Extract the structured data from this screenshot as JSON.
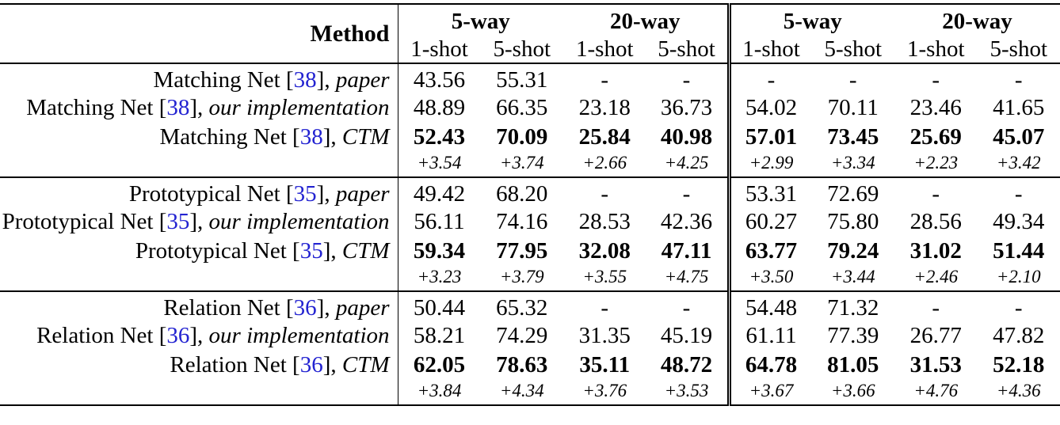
{
  "format": {
    "cite_open": " [",
    "cite_close": "], "
  },
  "colors": {
    "citation_blue": "#2323d1",
    "rule_black": "#000000",
    "background": "#ffffff"
  },
  "header": {
    "method": "Method",
    "way_groups": [
      "5-way",
      "20-way",
      "5-way",
      "20-way"
    ],
    "shots": [
      "1-shot",
      "5-shot",
      "1-shot",
      "5-shot",
      "1-shot",
      "5-shot",
      "1-shot",
      "5-shot"
    ]
  },
  "groups": [
    {
      "rows": [
        {
          "name": "Matching Net",
          "cite": "38",
          "suffix": "paper",
          "values": [
            "43.56",
            "55.31",
            "-",
            "-",
            "-",
            "-",
            "-",
            "-"
          ]
        },
        {
          "name": "Matching Net",
          "cite": "38",
          "suffix": "our implementation",
          "values": [
            "48.89",
            "66.35",
            "23.18",
            "36.73",
            "54.02",
            "70.11",
            "23.46",
            "41.65"
          ]
        },
        {
          "name": "Matching Net",
          "cite": "38",
          "suffix": "CTM",
          "values": [
            "52.43",
            "70.09",
            "25.84",
            "40.98",
            "57.01",
            "73.45",
            "25.69",
            "45.07"
          ]
        },
        {
          "delta": true,
          "values": [
            "+3.54",
            "+3.74",
            "+2.66",
            "+4.25",
            "+2.99",
            "+3.34",
            "+2.23",
            "+3.42"
          ]
        }
      ]
    },
    {
      "rows": [
        {
          "name": "Prototypical Net",
          "cite": "35",
          "suffix": "paper",
          "values": [
            "49.42",
            "68.20",
            "-",
            "-",
            "53.31",
            "72.69",
            "-",
            "-"
          ]
        },
        {
          "name": "Prototypical Net",
          "cite": "35",
          "suffix": "our implementation",
          "values": [
            "56.11",
            "74.16",
            "28.53",
            "42.36",
            "60.27",
            "75.80",
            "28.56",
            "49.34"
          ]
        },
        {
          "name": "Prototypical Net",
          "cite": "35",
          "suffix": "CTM",
          "values": [
            "59.34",
            "77.95",
            "32.08",
            "47.11",
            "63.77",
            "79.24",
            "31.02",
            "51.44"
          ]
        },
        {
          "delta": true,
          "values": [
            "+3.23",
            "+3.79",
            "+3.55",
            "+4.75",
            "+3.50",
            "+3.44",
            "+2.46",
            "+2.10"
          ]
        }
      ]
    },
    {
      "rows": [
        {
          "name": "Relation Net",
          "cite": "36",
          "suffix": "paper",
          "values": [
            "50.44",
            "65.32",
            "-",
            "-",
            "54.48",
            "71.32",
            "-",
            "-"
          ]
        },
        {
          "name": "Relation Net",
          "cite": "36",
          "suffix": "our implementation",
          "values": [
            "58.21",
            "74.29",
            "31.35",
            "45.19",
            "61.11",
            "77.39",
            "26.77",
            "47.82"
          ]
        },
        {
          "name": "Relation Net",
          "cite": "36",
          "suffix": "CTM",
          "values": [
            "62.05",
            "78.63",
            "35.11",
            "48.72",
            "64.78",
            "81.05",
            "31.53",
            "52.18"
          ]
        },
        {
          "delta": true,
          "values": [
            "+3.84",
            "+4.34",
            "+3.76",
            "+3.53",
            "+3.67",
            "+3.66",
            "+4.76",
            "+4.36"
          ]
        }
      ]
    }
  ]
}
